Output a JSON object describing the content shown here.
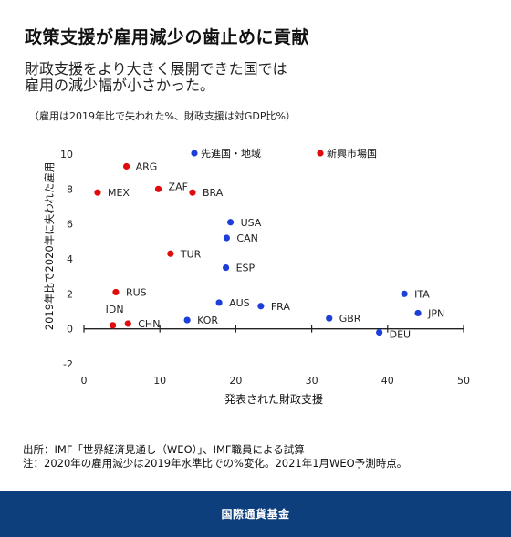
{
  "header": {
    "title": "政策支援が雇用減少の歯止めに貢献",
    "subtitle_line1": "財政支援をより大きく展開できた国では",
    "subtitle_line2": "雇用の減少幅が小さかった。",
    "note": "（雇用は2019年比で失われた%、財政支援は対GDP比%）"
  },
  "chart_data": {
    "type": "scatter",
    "xlabel": "発表された財政支援",
    "ylabel": "2019年比で2020年に失われた雇用",
    "xlim": [
      0,
      50
    ],
    "ylim": [
      -2,
      10
    ],
    "xticks": [
      0,
      10,
      20,
      30,
      40,
      50
    ],
    "yticks": [
      -2,
      0,
      2,
      4,
      6,
      8,
      10
    ],
    "grid": false,
    "legend_position": "top",
    "series": [
      {
        "name": "先進国・地域",
        "color": "#1c3fd8",
        "points": [
          {
            "label": "USA",
            "x": 19.3,
            "y": 6.1
          },
          {
            "label": "CAN",
            "x": 18.8,
            "y": 5.2
          },
          {
            "label": "ESP",
            "x": 18.7,
            "y": 3.5
          },
          {
            "label": "AUS",
            "x": 17.8,
            "y": 1.5
          },
          {
            "label": "FRA",
            "x": 23.3,
            "y": 1.3
          },
          {
            "label": "KOR",
            "x": 13.6,
            "y": 0.5
          },
          {
            "label": "ITA",
            "x": 42.2,
            "y": 2.0
          },
          {
            "label": "JPN",
            "x": 44.0,
            "y": 0.9
          },
          {
            "label": "GBR",
            "x": 32.3,
            "y": 0.6
          },
          {
            "label": "DEU",
            "x": 38.9,
            "y": -0.2
          }
        ]
      },
      {
        "name": "新興市場国",
        "color": "#e00b0b",
        "points": [
          {
            "label": "ARG",
            "x": 5.6,
            "y": 9.3
          },
          {
            "label": "MEX",
            "x": 1.8,
            "y": 7.8
          },
          {
            "label": "ZAF",
            "x": 9.8,
            "y": 8.0
          },
          {
            "label": "BRA",
            "x": 14.3,
            "y": 7.8
          },
          {
            "label": "TUR",
            "x": 11.4,
            "y": 4.3
          },
          {
            "label": "RUS",
            "x": 4.2,
            "y": 2.1
          },
          {
            "label": "IDN",
            "x": 3.8,
            "y": 0.2
          },
          {
            "label": "CHN",
            "x": 5.8,
            "y": 0.3
          }
        ]
      }
    ]
  },
  "sources": {
    "line1": "出所：IMF「世界経済見通し（WEO）」、IMF職員による試算",
    "line2": "注：2020年の雇用減少は2019年水準比での%変化。2021年1月WEO予測時点。"
  },
  "footer": {
    "label": "国際通貨基金"
  }
}
